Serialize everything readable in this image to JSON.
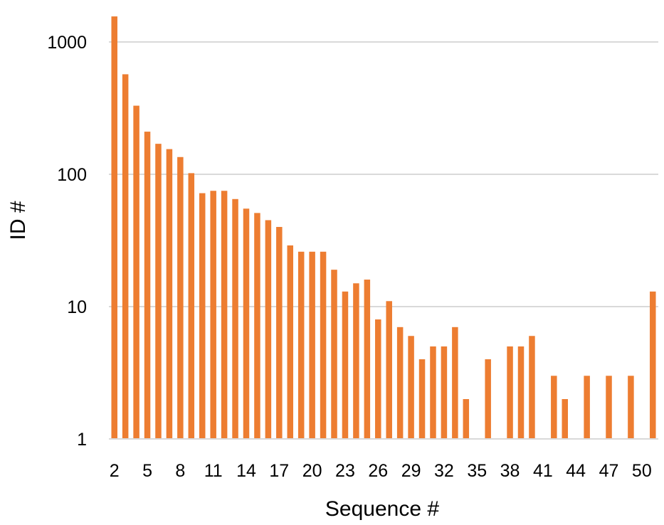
{
  "chart_data": {
    "type": "bar",
    "title": "",
    "xlabel": "Sequence #",
    "ylabel": "ID #",
    "y_scale": "log",
    "ylim": [
      1,
      1600
    ],
    "y_ticks": [
      1,
      10,
      100,
      1000
    ],
    "y_tick_labels": [
      "1",
      "10",
      "100",
      "1000"
    ],
    "x_tick_labels": [
      "2",
      "5",
      "8",
      "11",
      "14",
      "17",
      "20",
      "23",
      "26",
      "29",
      "32",
      "35",
      "38",
      "41",
      "44",
      "47",
      "50"
    ],
    "grid": true,
    "bar_color": "#ed7d31",
    "grid_color": "#d9d9d9",
    "categories": [
      2,
      3,
      4,
      5,
      6,
      7,
      8,
      9,
      10,
      11,
      12,
      13,
      14,
      15,
      16,
      17,
      18,
      19,
      20,
      21,
      22,
      23,
      24,
      25,
      26,
      27,
      28,
      29,
      30,
      31,
      32,
      33,
      34,
      35,
      36,
      37,
      38,
      39,
      40,
      41,
      42,
      43,
      44,
      45,
      46,
      47,
      48,
      49,
      50,
      51
    ],
    "values": [
      1560,
      570,
      330,
      210,
      170,
      155,
      135,
      102,
      72,
      75,
      75,
      65,
      55,
      51,
      45,
      40,
      29,
      26,
      26,
      26,
      19,
      13,
      15,
      16,
      8,
      11,
      7,
      6,
      4,
      5,
      5,
      7,
      2,
      0,
      4,
      0,
      5,
      5,
      6,
      0,
      3,
      2,
      0,
      3,
      0,
      3,
      0,
      3,
      0,
      13
    ]
  }
}
